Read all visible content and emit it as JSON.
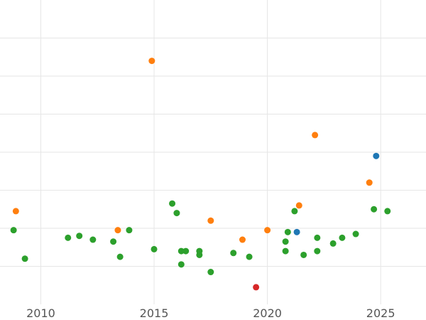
{
  "chart_data": {
    "type": "scatter",
    "title": "",
    "xlabel": "",
    "ylabel": "",
    "grid": true,
    "xlim": [
      2008.2,
      2027.0
    ],
    "ylim": [
      0,
      8
    ],
    "x_ticks": [
      2010,
      2015,
      2020,
      2025
    ],
    "x_tick_labels": [
      "2010",
      "2015",
      "2020",
      "2025"
    ],
    "y_grid_values": [
      1,
      2,
      3,
      4,
      5,
      6,
      7
    ],
    "colors": {
      "orange": "#ff7f0e",
      "green": "#2ca02c",
      "blue": "#1f77b4",
      "red": "#d62728"
    },
    "series": [
      {
        "color": "orange",
        "x": [
          2008.9,
          2013.4,
          2014.9,
          2017.5,
          2018.9,
          2020.0,
          2021.4,
          2022.1,
          2024.5
        ],
        "y": [
          2.45,
          1.95,
          6.4,
          2.2,
          1.7,
          1.95,
          2.6,
          4.45,
          3.2
        ]
      },
      {
        "color": "green",
        "x": [
          2008.8,
          2009.3,
          2011.2,
          2011.7,
          2012.3,
          2013.2,
          2013.5,
          2013.9,
          2015.0,
          2015.8,
          2016.0,
          2016.2,
          2016.2,
          2016.4,
          2017.0,
          2017.0,
          2017.5,
          2018.5,
          2019.2,
          2020.8,
          2020.8,
          2020.9,
          2021.2,
          2021.6,
          2022.2,
          2022.2,
          2022.9,
          2023.3,
          2023.9,
          2024.7,
          2025.3
        ],
        "y": [
          1.95,
          1.2,
          1.75,
          1.8,
          1.7,
          1.65,
          1.25,
          1.95,
          1.45,
          2.65,
          2.4,
          1.4,
          1.05,
          1.4,
          1.4,
          1.3,
          0.85,
          1.35,
          1.25,
          1.65,
          1.4,
          1.9,
          2.45,
          1.3,
          1.4,
          1.75,
          1.6,
          1.75,
          1.85,
          2.5,
          2.45
        ]
      },
      {
        "color": "blue",
        "x": [
          2021.3,
          2024.8
        ],
        "y": [
          1.9,
          3.9
        ]
      },
      {
        "color": "red",
        "x": [
          2019.5
        ],
        "y": [
          0.45
        ]
      }
    ]
  }
}
